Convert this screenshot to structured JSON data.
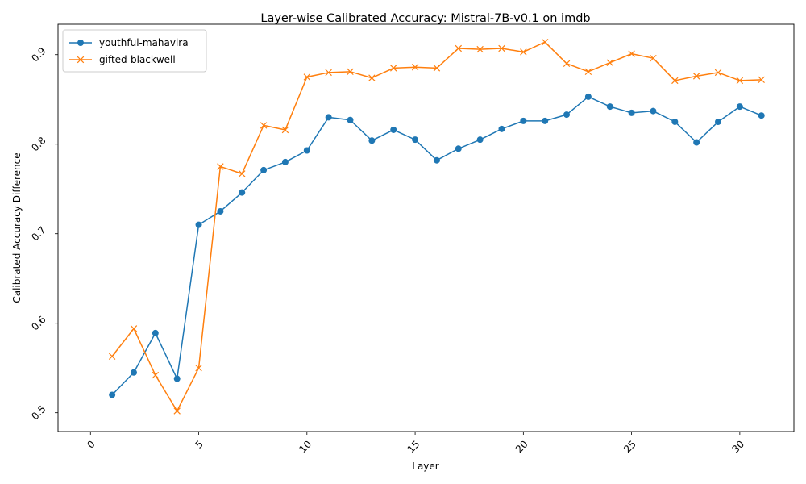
{
  "chart_data": {
    "type": "line",
    "title": "Layer-wise Calibrated Accuracy: Mistral-7B-v0.1 on imdb",
    "xlabel": "Layer",
    "ylabel": "Calibrated Accuracy Difference",
    "xlim": [
      -1.5,
      32.5
    ],
    "ylim": [
      0.479,
      0.934
    ],
    "xticks": [
      0,
      5,
      10,
      15,
      20,
      25,
      30
    ],
    "yticks": [
      0.5,
      0.6,
      0.7,
      0.8,
      0.9
    ],
    "ytick_labels": [
      "0.5",
      "0.6",
      "0.7",
      "0.8",
      "0.9"
    ],
    "tick_label_rotation_deg": 45,
    "grid": false,
    "legend_position": "top-left",
    "x": [
      1,
      2,
      3,
      4,
      5,
      6,
      7,
      8,
      9,
      10,
      11,
      12,
      13,
      14,
      15,
      16,
      17,
      18,
      19,
      20,
      21,
      22,
      23,
      24,
      25,
      26,
      27,
      28,
      29,
      30,
      31
    ],
    "series": [
      {
        "name": "youthful-mahavira",
        "color": "#1f77b4",
        "marker": "circle",
        "values": [
          0.52,
          0.545,
          0.589,
          0.538,
          0.71,
          0.725,
          0.746,
          0.771,
          0.78,
          0.793,
          0.83,
          0.827,
          0.804,
          0.816,
          0.805,
          0.782,
          0.795,
          0.805,
          0.817,
          0.826,
          0.826,
          0.833,
          0.853,
          0.842,
          0.835,
          0.837,
          0.825,
          0.802,
          0.825,
          0.842,
          0.832
        ]
      },
      {
        "name": "gifted-blackwell",
        "color": "#ff7f0e",
        "marker": "x",
        "values": [
          0.563,
          0.594,
          0.542,
          0.502,
          0.55,
          0.775,
          0.767,
          0.821,
          0.816,
          0.875,
          0.88,
          0.881,
          0.874,
          0.885,
          0.886,
          0.885,
          0.907,
          0.906,
          0.907,
          0.903,
          0.914,
          0.89,
          0.881,
          0.891,
          0.901,
          0.896,
          0.871,
          0.876,
          0.88,
          0.871,
          0.872
        ]
      }
    ]
  }
}
